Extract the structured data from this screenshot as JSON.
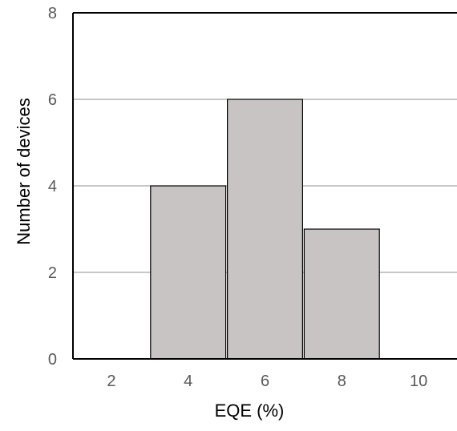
{
  "chart_data": {
    "type": "bar",
    "title": "",
    "xlabel": "EQE (%)",
    "ylabel": "Number of devices",
    "x_ticks": [
      "2",
      "4",
      "6",
      "8",
      "10"
    ],
    "y_ticks": [
      "0",
      "2",
      "4",
      "6",
      "8"
    ],
    "xlim": [
      1,
      11
    ],
    "ylim": [
      0,
      8
    ],
    "bin_width": 2,
    "bins": [
      {
        "center": 4,
        "value": 4
      },
      {
        "center": 6,
        "value": 6
      },
      {
        "center": 8,
        "value": 3
      }
    ],
    "grid": "horizontal",
    "bar_color": "#c8c4c3",
    "bar_edge_color": "#000000",
    "grid_color": "#8f8f8f",
    "axis_color": "#000000",
    "tick_label_color": "#595959",
    "axis_label_color": "#000000"
  }
}
